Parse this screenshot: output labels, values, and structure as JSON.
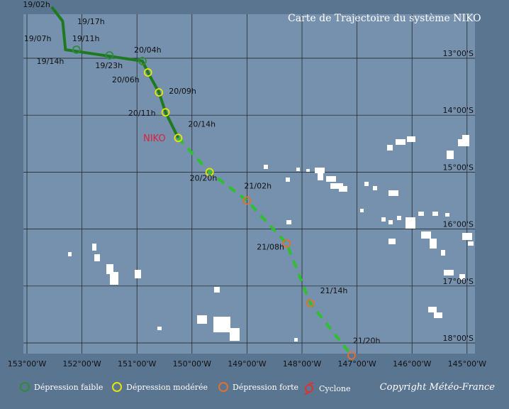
{
  "title": "Carte de Trajectoire du système NIKO",
  "system_name": "NIKO",
  "copyright": "Copyright Météo-France",
  "colors": {
    "ocean": "#7591ad",
    "frame": "#5a7590",
    "grid": "#1a1a1a",
    "land": "#ffffff",
    "track_faible": "#1f7a1f",
    "track_forecast": "#2fbf2f",
    "depression_faible": "#2e8b3a",
    "depression_moderee": "#e6e600",
    "depression_forte": "#e07030",
    "cyclone": "#e03030",
    "system_label": "#e0203a"
  },
  "legend": [
    {
      "label": "Dépression faible",
      "color": "#2e8b3a"
    },
    {
      "label": "Dépression modérée",
      "color": "#e6e600"
    },
    {
      "label": "Dépression forte",
      "color": "#e07030"
    },
    {
      "label": "Cyclone",
      "color": "#e03030",
      "icon": "cyclone-icon"
    }
  ],
  "axes": {
    "lon_labels": [
      "153°00'W",
      "152°00'W",
      "151°00'W",
      "150°00'W",
      "149°00'W",
      "148°00'W",
      "147°00'W",
      "146°00'W",
      "145°00'W"
    ],
    "lon_values": [
      -153,
      -152,
      -151,
      -150,
      -149,
      -148,
      -147,
      -146,
      -145
    ],
    "lat_labels": [
      "13°00'S",
      "14°00'S",
      "15°00'S",
      "16°00'S",
      "17°00'S",
      "18°00'S"
    ],
    "lat_values": [
      -13,
      -14,
      -15,
      -16,
      -17,
      -18
    ],
    "lon_range": [
      -153,
      -145
    ],
    "lat_range": [
      -18.3,
      -12.1
    ]
  },
  "track": {
    "observed": [
      {
        "time": "19/02h",
        "lon": -152.55,
        "lat": -12.15,
        "type": "none"
      },
      {
        "time": "19/17h",
        "lon": -152.42,
        "lat": -12.3,
        "type": "none"
      },
      {
        "time": "19/07h",
        "lon": -152.35,
        "lat": -12.55,
        "type": "none"
      },
      {
        "time": "19/14h",
        "lon": -152.3,
        "lat": -12.85,
        "type": "none"
      },
      {
        "time": "19/11h",
        "lon": -152.1,
        "lat": -12.85,
        "type": "faible"
      },
      {
        "time": "19/23h",
        "lon": -151.5,
        "lat": -12.95,
        "type": "faible"
      },
      {
        "time": "20/04h",
        "lon": -150.9,
        "lat": -13.05,
        "type": "faible"
      },
      {
        "time": "20/06h",
        "lon": -150.8,
        "lat": -13.25,
        "type": "moderee"
      },
      {
        "time": "20/09h",
        "lon": -150.6,
        "lat": -13.6,
        "type": "moderee"
      },
      {
        "time": "20/11h",
        "lon": -150.48,
        "lat": -13.95,
        "type": "moderee"
      },
      {
        "time": "20/14h",
        "lon": -150.25,
        "lat": -14.4,
        "type": "moderee"
      }
    ],
    "forecast": [
      {
        "time": "20/20h",
        "lon": -149.68,
        "lat": -15.0,
        "type": "moderee"
      },
      {
        "time": "21/02h",
        "lon": -149.0,
        "lat": -15.5,
        "type": "forte"
      },
      {
        "time": "21/08h",
        "lon": -148.28,
        "lat": -16.25,
        "type": "forte"
      },
      {
        "time": "21/14h",
        "lon": -147.85,
        "lat": -17.3,
        "type": "forte"
      },
      {
        "time": "21/20h",
        "lon": -147.1,
        "lat": -18.22,
        "type": "forte"
      }
    ]
  }
}
